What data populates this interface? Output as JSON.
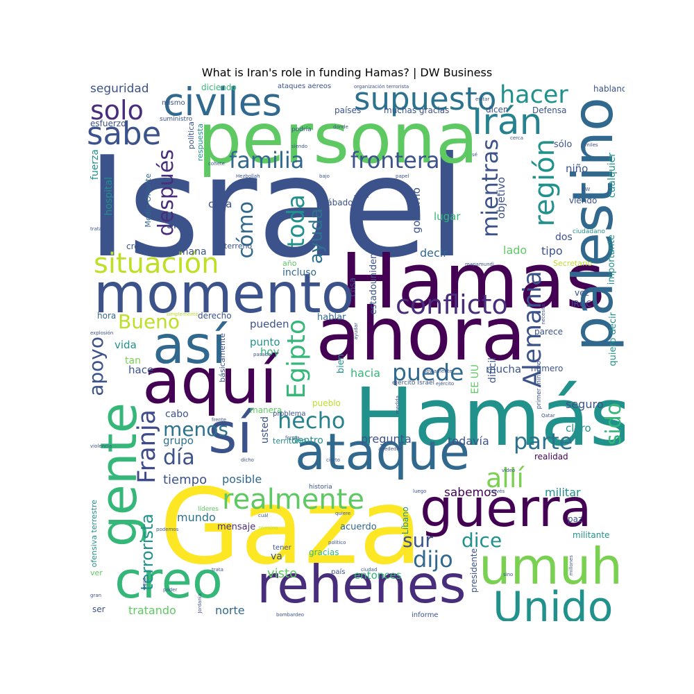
{
  "title": "What is Iran's role in funding Hamas? | DW Business",
  "words": [
    {
      "text": "Israel",
      "color": "#3b528b"
    },
    {
      "text": "persona",
      "color": "#5ec962"
    },
    {
      "text": "Hamas",
      "color": "#440154"
    },
    {
      "text": "Hamás",
      "color": "#21918c"
    },
    {
      "text": "Gaza",
      "color": "#fde725"
    },
    {
      "text": "ahora",
      "color": "#440154"
    },
    {
      "text": "momento",
      "color": "#3b528b"
    },
    {
      "text": "palestino",
      "color": "#31688e"
    },
    {
      "text": "aquí",
      "color": "#440154"
    },
    {
      "text": "así",
      "color": "#31688e"
    },
    {
      "text": "sí",
      "color": "#3b528b"
    },
    {
      "text": "ataque",
      "color": "#31688e"
    },
    {
      "text": "guerra",
      "color": "#440154"
    },
    {
      "text": "rehenes",
      "color": "#472d7b"
    },
    {
      "text": "creo",
      "color": "#35b779"
    },
    {
      "text": "umuh",
      "color": "#7ad151"
    },
    {
      "text": "Unido",
      "color": "#21918c"
    },
    {
      "text": "gente",
      "color": "#35b779"
    },
    {
      "text": "civiles",
      "color": "#31688e"
    },
    {
      "text": "Irán",
      "color": "#26828e"
    },
    {
      "text": "supuesto",
      "color": "#2c728e"
    },
    {
      "text": "sabe",
      "color": "#3b528b"
    },
    {
      "text": "solo",
      "color": "#472d7b"
    },
    {
      "text": "hacer",
      "color": "#21918c"
    },
    {
      "text": "familia",
      "color": "#31688e"
    },
    {
      "text": "frontera",
      "color": "#3b528b"
    },
    {
      "text": "situación",
      "color": "#bddf26"
    },
    {
      "text": "conflicto",
      "color": "#472d7b"
    },
    {
      "text": "realmente",
      "color": "#5ec962"
    },
    {
      "text": "región",
      "color": "#21918c"
    },
    {
      "text": "Egipto",
      "color": "#35b779"
    },
    {
      "text": "Alemania",
      "color": "#3b528b"
    },
    {
      "text": "hecho",
      "color": "#26828e"
    },
    {
      "text": "puede",
      "color": "#31688e"
    },
    {
      "text": "parte",
      "color": "#2c728e"
    },
    {
      "text": "allí",
      "color": "#7ad151"
    },
    {
      "text": "Franja",
      "color": "#3e4a89"
    },
    {
      "text": "dijo",
      "color": "#31688e"
    },
    {
      "text": "sur",
      "color": "#3b528b"
    },
    {
      "text": "dice",
      "color": "#21918c"
    },
    {
      "text": "Bueno",
      "color": "#bddf26"
    },
    {
      "text": "día",
      "color": "#3b528b"
    },
    {
      "text": "menos",
      "color": "#2c728e"
    },
    {
      "text": "mientras",
      "color": "#3b528b"
    },
    {
      "text": "cómo",
      "color": "#31688e"
    },
    {
      "text": "toda",
      "color": "#21918c"
    },
    {
      "text": "ayuda",
      "color": "#2c728e"
    },
    {
      "text": "después",
      "color": "#472d7b"
    },
    {
      "text": "sido",
      "color": "#35b779"
    },
    {
      "text": "apoyo",
      "color": "#3b528b"
    },
    {
      "text": "terrorista",
      "color": "#21918c"
    },
    {
      "text": "visto",
      "color": "#5ec962"
    },
    {
      "text": "entonces",
      "color": "#35b779"
    },
    {
      "text": "tratando",
      "color": "#5ec962"
    },
    {
      "text": "norte",
      "color": "#31688e"
    },
    {
      "text": "tiempo",
      "color": "#3b528b"
    },
    {
      "text": "posible",
      "color": "#31688e"
    },
    {
      "text": "sabemos",
      "color": "#440154"
    },
    {
      "text": "militar",
      "color": "#21918c"
    },
    {
      "text": "mundo",
      "color": "#2c728e"
    },
    {
      "text": "mensaje",
      "color": "#472d7b"
    },
    {
      "text": "acuerdo",
      "color": "#31688e"
    },
    {
      "text": "gracias",
      "color": "#35b779"
    },
    {
      "text": "pregunta",
      "color": "#3b528b"
    },
    {
      "text": "todavía",
      "color": "#3b528b"
    },
    {
      "text": "dentro",
      "color": "#21918c"
    },
    {
      "text": "grupo",
      "color": "#2c728e"
    },
    {
      "text": "cabo",
      "color": "#3b528b"
    },
    {
      "text": "seguro",
      "color": "#3b528b"
    },
    {
      "text": "claro",
      "color": "#21918c"
    },
    {
      "text": "mucha",
      "color": "#3b528b"
    },
    {
      "text": "hacia",
      "color": "#35b779"
    },
    {
      "text": "hace",
      "color": "#3b528b"
    },
    {
      "text": "tan",
      "color": "#7ad151"
    },
    {
      "text": "vida",
      "color": "#21918c"
    },
    {
      "text": "hoy",
      "color": "#35b779"
    },
    {
      "text": "punto",
      "color": "#21918c"
    },
    {
      "text": "pueden",
      "color": "#3b528b"
    },
    {
      "text": "hablar",
      "color": "#31688e"
    },
    {
      "text": "derecho",
      "color": "#3b528b"
    },
    {
      "text": "hora",
      "color": "#31688e"
    },
    {
      "text": "incluso",
      "color": "#31688e"
    },
    {
      "text": "año",
      "color": "#5ec962"
    },
    {
      "text": "semana",
      "color": "#3b528b"
    },
    {
      "text": "cree",
      "color": "#3b528b"
    },
    {
      "text": "terreno",
      "color": "#3b528b"
    },
    {
      "text": "área",
      "color": "#3b528b"
    },
    {
      "text": "casa",
      "color": "#3b528b"
    },
    {
      "text": "lugar",
      "color": "#35b779"
    },
    {
      "text": "decir",
      "color": "#31688e"
    },
    {
      "text": "lado",
      "color": "#5ec962"
    },
    {
      "text": "tipo",
      "color": "#3b528b"
    },
    {
      "text": "dos",
      "color": "#3b528b"
    },
    {
      "text": "niño",
      "color": "#3b528b"
    },
    {
      "text": "viendo",
      "color": "#3b528b"
    },
    {
      "text": "sólo",
      "color": "#3b528b"
    },
    {
      "text": "seguridad",
      "color": "#3b528b"
    },
    {
      "text": "esfuerzo",
      "color": "#3b528b"
    },
    {
      "text": "diciendo",
      "color": "#35b779"
    },
    {
      "text": "mismo",
      "color": "#3b528b"
    },
    {
      "text": "ataques aéreos",
      "color": "#3b528b"
    },
    {
      "text": "países",
      "color": "#3b528b"
    },
    {
      "text": "muchas gracias",
      "color": "#3b528b"
    },
    {
      "text": "dicen",
      "color": "#3b528b"
    },
    {
      "text": "Defensa",
      "color": "#3b528b"
    },
    {
      "text": "hablando",
      "color": "#3b528b"
    },
    {
      "text": "fuerza",
      "color": "#21918c"
    },
    {
      "text": "hospital",
      "color": "#21918c"
    },
    {
      "text": "Medio Oriente",
      "color": "#31688e"
    },
    {
      "text": "política",
      "color": "#3b528b"
    },
    {
      "text": "respuesta",
      "color": "#21918c"
    },
    {
      "text": "gobierno",
      "color": "#3b528b"
    },
    {
      "text": "objetivo",
      "color": "#3b528b"
    },
    {
      "text": "sábado",
      "color": "#3b528b"
    },
    {
      "text": "cosa",
      "color": "#3b528b"
    },
    {
      "text": "estadounidense",
      "color": "#3b528b"
    },
    {
      "text": "EE UU",
      "color": "#5ec962"
    },
    {
      "text": "bien",
      "color": "#21918c"
    },
    {
      "text": "básicamente",
      "color": "#3b528b"
    },
    {
      "text": "manera",
      "color": "#5ec962"
    },
    {
      "text": "problema",
      "color": "#3b528b"
    },
    {
      "text": "pueblo",
      "color": "#bddf26"
    },
    {
      "text": "usted",
      "color": "#3b528b"
    },
    {
      "text": "territorio",
      "color": "#21918c"
    },
    {
      "text": "realidad",
      "color": "#440154"
    },
    {
      "text": "paz",
      "color": "#3b528b"
    },
    {
      "text": "militante",
      "color": "#21918c"
    },
    {
      "text": "quiero decir",
      "color": "#21918c"
    },
    {
      "text": "importante",
      "color": "#21918c"
    },
    {
      "text": "cualquier",
      "color": "#21918c"
    },
    {
      "text": "difícil",
      "color": "#3b528b"
    },
    {
      "text": "número",
      "color": "#3b528b"
    },
    {
      "text": "parece",
      "color": "#3b528b"
    },
    {
      "text": "IRGC",
      "color": "#3b528b"
    },
    {
      "text": "vez",
      "color": "#3b528b"
    },
    {
      "text": "Secretario",
      "color": "#bddf26"
    },
    {
      "text": "ciudadano",
      "color": "#21918c"
    },
    {
      "text": "ofensiva terrestre",
      "color": "#21918c"
    },
    {
      "text": "ver",
      "color": "#5ec962"
    },
    {
      "text": "ser",
      "color": "#3b528b"
    },
    {
      "text": "va",
      "color": "#3b528b"
    },
    {
      "text": "Líbano",
      "color": "#21918c"
    },
    {
      "text": "presidente",
      "color": "#3b528b"
    },
    {
      "text": "informe",
      "color": "#3b528b"
    },
    {
      "text": "país",
      "color": "#3b528b"
    },
    {
      "text": "líderes",
      "color": "#5ec962"
    },
    {
      "text": "historia",
      "color": "#3b528b"
    },
    {
      "text": "tener",
      "color": "#3b528b"
    },
    {
      "text": "ejército Israel",
      "color": "#3b528b"
    },
    {
      "text": "primer ministro",
      "color": "#3b528b"
    },
    {
      "text": "suministro",
      "color": "#3b528b"
    },
    {
      "text": "podría",
      "color": "#3b528b"
    },
    {
      "text": "organización terrorista",
      "color": "#3b528b"
    },
    {
      "text": "evitar",
      "color": "#3b528b"
    },
    {
      "text": "donde",
      "color": "#3b528b"
    },
    {
      "text": "cerca",
      "color": "#3b528b"
    },
    {
      "text": "siendo",
      "color": "#3b528b"
    },
    {
      "text": "cohete",
      "color": "#3b528b"
    },
    {
      "text": "Hezbollah",
      "color": "#3b528b"
    },
    {
      "text": "bajo",
      "color": "#3b528b"
    },
    {
      "text": "papel",
      "color": "#3b528b"
    },
    {
      "text": "nunca",
      "color": "#3b528b"
    },
    {
      "text": "miles",
      "color": "#3b528b"
    },
    {
      "text": "DW",
      "color": "#3b528b"
    },
    {
      "text": "tratar",
      "color": "#3b528b"
    },
    {
      "text": "simplemente",
      "color": "#bddf26"
    },
    {
      "text": "explosión",
      "color": "#3b528b"
    },
    {
      "text": "pasado",
      "color": "#3b528b"
    },
    {
      "text": "obviamente",
      "color": "#3b528b"
    },
    {
      "text": "ejército",
      "color": "#3b528b"
    },
    {
      "text": "medida",
      "color": "#3b528b"
    },
    {
      "text": "Qatar",
      "color": "#3b528b"
    },
    {
      "text": "frente",
      "color": "#3b528b"
    },
    {
      "text": "forma",
      "color": "#3b528b"
    },
    {
      "text": "dicho",
      "color": "#3b528b"
    },
    {
      "text": "cierto",
      "color": "#3b528b"
    },
    {
      "text": "alrededor",
      "color": "#3b528b"
    },
    {
      "text": "violencia",
      "color": "#3b528b"
    },
    {
      "text": "video",
      "color": "#3b528b"
    },
    {
      "text": "través",
      "color": "#3b528b"
    },
    {
      "text": "luego",
      "color": "#3b528b"
    },
    {
      "text": "cuál",
      "color": "#3b528b"
    },
    {
      "text": "quiere",
      "color": "#3b528b"
    },
    {
      "text": "podemos",
      "color": "#3b528b"
    },
    {
      "text": "término",
      "color": "#bddf26"
    },
    {
      "text": "político",
      "color": "#3b528b"
    },
    {
      "text": "trata",
      "color": "#3b528b"
    },
    {
      "text": "ciudad",
      "color": "#3b528b"
    },
    {
      "text": "agua",
      "color": "#3b528b"
    },
    {
      "text": "gran",
      "color": "#3b528b"
    },
    {
      "text": "poder",
      "color": "#3b528b"
    },
    {
      "text": "Jordania",
      "color": "#3b528b"
    },
    {
      "text": "bombardeo",
      "color": "#3b528b"
    },
    {
      "text": "sino",
      "color": "#3b528b"
    },
    {
      "text": "millones",
      "color": "#3b528b"
    },
    {
      "text": "ayudar",
      "color": "#3b528b"
    },
    {
      "text": "necesita",
      "color": "#3b528b"
    },
    {
      "text": "mapamundi",
      "color": "#3b528b"
    },
    {
      "text": "sé",
      "color": "#3b528b"
    }
  ]
}
